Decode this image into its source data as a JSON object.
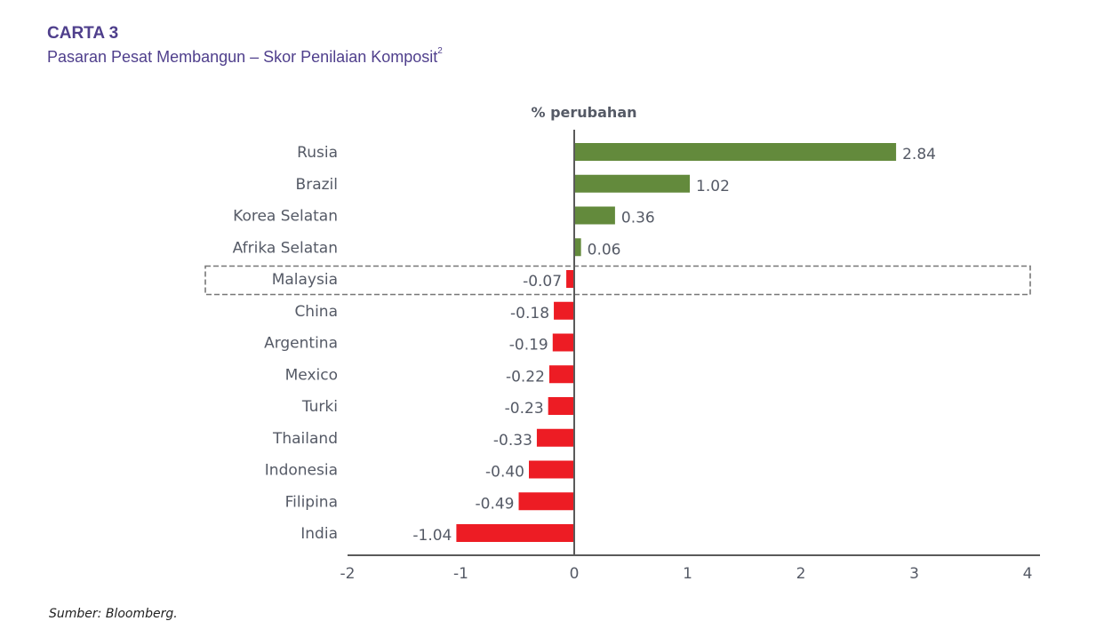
{
  "header": {
    "chart_number": "CARTA 3",
    "subtitle": "Pasaran Pesat Membangun – Skor Penilaian Komposit",
    "subtitle_footnote": "2"
  },
  "source": "Sumber: Bloomberg.",
  "colors": {
    "positive": "#638a3c",
    "negative": "#ed1c24",
    "title": "#4f3f8c",
    "axis": "#5a5a5a",
    "highlight_box": "#777777"
  },
  "chart_data": {
    "type": "bar",
    "orientation": "horizontal",
    "title": "CARTA 3",
    "subtitle": "Pasaran Pesat Membangun – Skor Penilaian Komposit",
    "xlabel": "% perubahan",
    "ylabel": "",
    "xlim": [
      -2,
      4
    ],
    "xticks": [
      "-2",
      "-1",
      "0",
      "1",
      "2",
      "3",
      "4"
    ],
    "xtick_values": [
      -2,
      -1,
      0,
      1,
      2,
      3,
      4
    ],
    "grid": false,
    "highlighted_category": "Malaysia",
    "categories": [
      "Rusia",
      "Brazil",
      "Korea Selatan",
      "Afrika Selatan",
      "Malaysia",
      "China",
      "Argentina",
      "Mexico",
      "Turki",
      "Thailand",
      "Indonesia",
      "Filipina",
      "India"
    ],
    "values": [
      2.84,
      1.02,
      0.36,
      0.06,
      -0.07,
      -0.18,
      -0.19,
      -0.22,
      -0.23,
      -0.33,
      -0.4,
      -0.49,
      -1.04
    ],
    "labels": [
      "2.84",
      "1.02",
      "0.36",
      "0.06",
      "-0.07",
      "-0.18",
      "-0.19",
      "-0.22",
      "-0.23",
      "-0.33",
      "-0.40",
      "-0.49",
      "-1.04"
    ]
  }
}
